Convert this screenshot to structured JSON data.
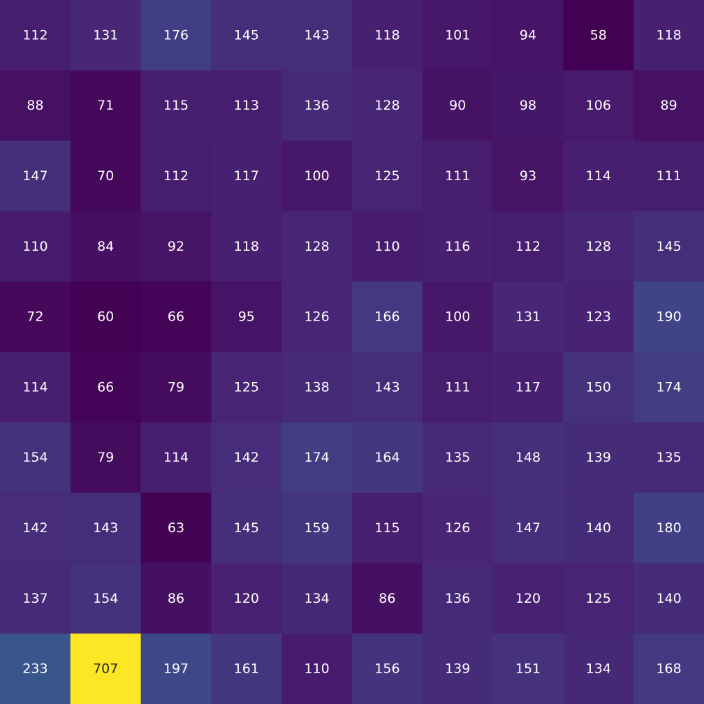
{
  "chart_data": {
    "type": "heatmap",
    "colormap": "viridis",
    "value_range": [
      58,
      707
    ],
    "rows": 10,
    "cols": 10,
    "values": [
      [
        112,
        131,
        176,
        145,
        143,
        118,
        101,
        94,
        58,
        118
      ],
      [
        88,
        71,
        115,
        113,
        136,
        128,
        90,
        98,
        106,
        89
      ],
      [
        147,
        70,
        112,
        117,
        100,
        125,
        111,
        93,
        114,
        111
      ],
      [
        110,
        84,
        92,
        118,
        128,
        110,
        116,
        112,
        128,
        145
      ],
      [
        72,
        60,
        66,
        95,
        126,
        166,
        100,
        131,
        123,
        190
      ],
      [
        114,
        66,
        79,
        125,
        138,
        143,
        111,
        117,
        150,
        174
      ],
      [
        154,
        79,
        114,
        142,
        174,
        164,
        135,
        148,
        139,
        135
      ],
      [
        142,
        143,
        63,
        145,
        159,
        115,
        126,
        147,
        140,
        180
      ],
      [
        137,
        154,
        86,
        120,
        134,
        86,
        136,
        120,
        125,
        140
      ],
      [
        233,
        707,
        197,
        161,
        110,
        156,
        139,
        151,
        134,
        168
      ]
    ],
    "label_colors": {
      "light": "#ffffff",
      "dark": "#262626"
    },
    "grid": false,
    "legend": "none"
  }
}
